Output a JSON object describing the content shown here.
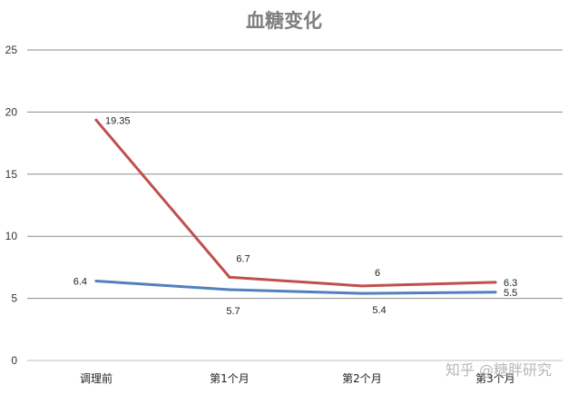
{
  "watermark": "知乎 @糖胖研究",
  "chart_data": {
    "type": "line",
    "title": "血糖变化",
    "xlabel": "",
    "ylabel": "",
    "categories": [
      "调理前",
      "第1个月",
      "第2个月",
      "第3个月"
    ],
    "ylim": [
      0,
      25
    ],
    "yticks": [
      0,
      5,
      10,
      15,
      20,
      25
    ],
    "grid": true,
    "legend": "none",
    "series": [
      {
        "values": [
          19.35,
          6.7,
          6,
          6.3
        ],
        "color": "#c0504d"
      },
      {
        "values": [
          6.4,
          5.7,
          5.4,
          5.5
        ],
        "color": "#4f81bd"
      }
    ]
  }
}
